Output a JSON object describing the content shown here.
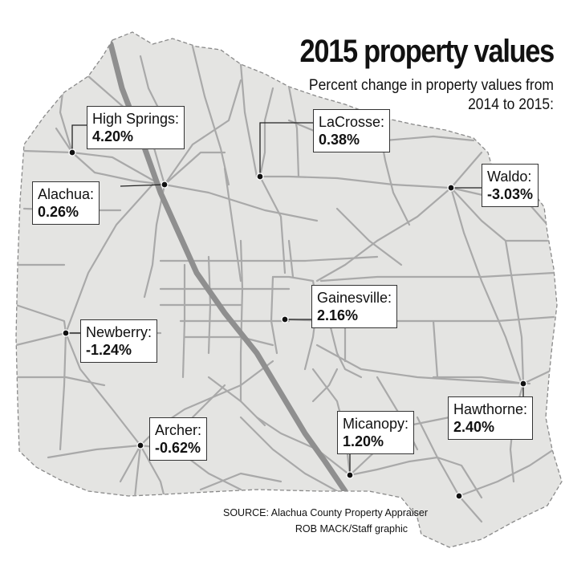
{
  "title": "2015 property values",
  "subtitle": "Percent change in property values from 2014 to 2015:",
  "source_line": "SOURCE: Alachua County Property Appraiser",
  "credit_line": "ROB MACK/Staff graphic",
  "colors": {
    "county_fill": "#e4e4e2",
    "county_border": "#8a8a8a",
    "road": "#a9a9a9",
    "interstate": "#8f8f8f",
    "dot": "#111111"
  },
  "cities": [
    {
      "id": "high-springs",
      "name": "High Springs:",
      "value": "4.20%",
      "percent": 4.2
    },
    {
      "id": "alachua",
      "name": "Alachua:",
      "value": "0.26%",
      "percent": 0.26
    },
    {
      "id": "lacrosse",
      "name": "LaCrosse:",
      "value": "0.38%",
      "percent": 0.38
    },
    {
      "id": "waldo",
      "name": "Waldo:",
      "value": "-3.03%",
      "percent": -3.03
    },
    {
      "id": "gainesville",
      "name": "Gainesville:",
      "value": "2.16%",
      "percent": 2.16
    },
    {
      "id": "newberry",
      "name": "Newberry:",
      "value": "-1.24%",
      "percent": -1.24
    },
    {
      "id": "archer",
      "name": "Archer:",
      "value": "-0.62%",
      "percent": -0.62
    },
    {
      "id": "micanopy",
      "name": "Micanopy:",
      "value": "1.20%",
      "percent": 1.2
    },
    {
      "id": "hawthorne",
      "name": "Hawthorne:",
      "value": "2.40%",
      "percent": 2.4
    }
  ]
}
